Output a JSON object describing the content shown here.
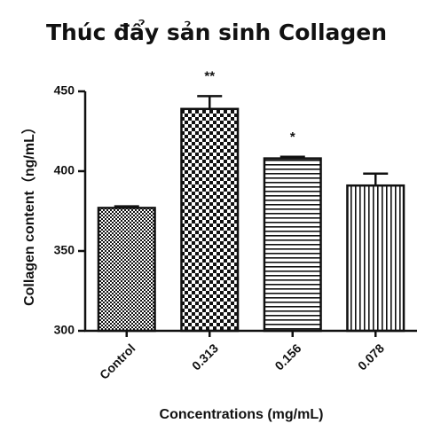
{
  "chart_data": {
    "type": "bar",
    "title": "Thúc đẩy sản sinh Collagen",
    "x_label": "Concentrations (mg/mL)",
    "y_label": "Collagen content（ng/mL）",
    "categories": [
      "Control",
      "0.313",
      "0.156",
      "0.078"
    ],
    "values": [
      377,
      439,
      408,
      391
    ],
    "errors": [
      1,
      8,
      1,
      7.5
    ],
    "significance": [
      null,
      "**",
      "*",
      null
    ],
    "ylim": [
      300,
      450
    ],
    "yticks": [
      300,
      350,
      400,
      450
    ],
    "color": "#111111"
  }
}
